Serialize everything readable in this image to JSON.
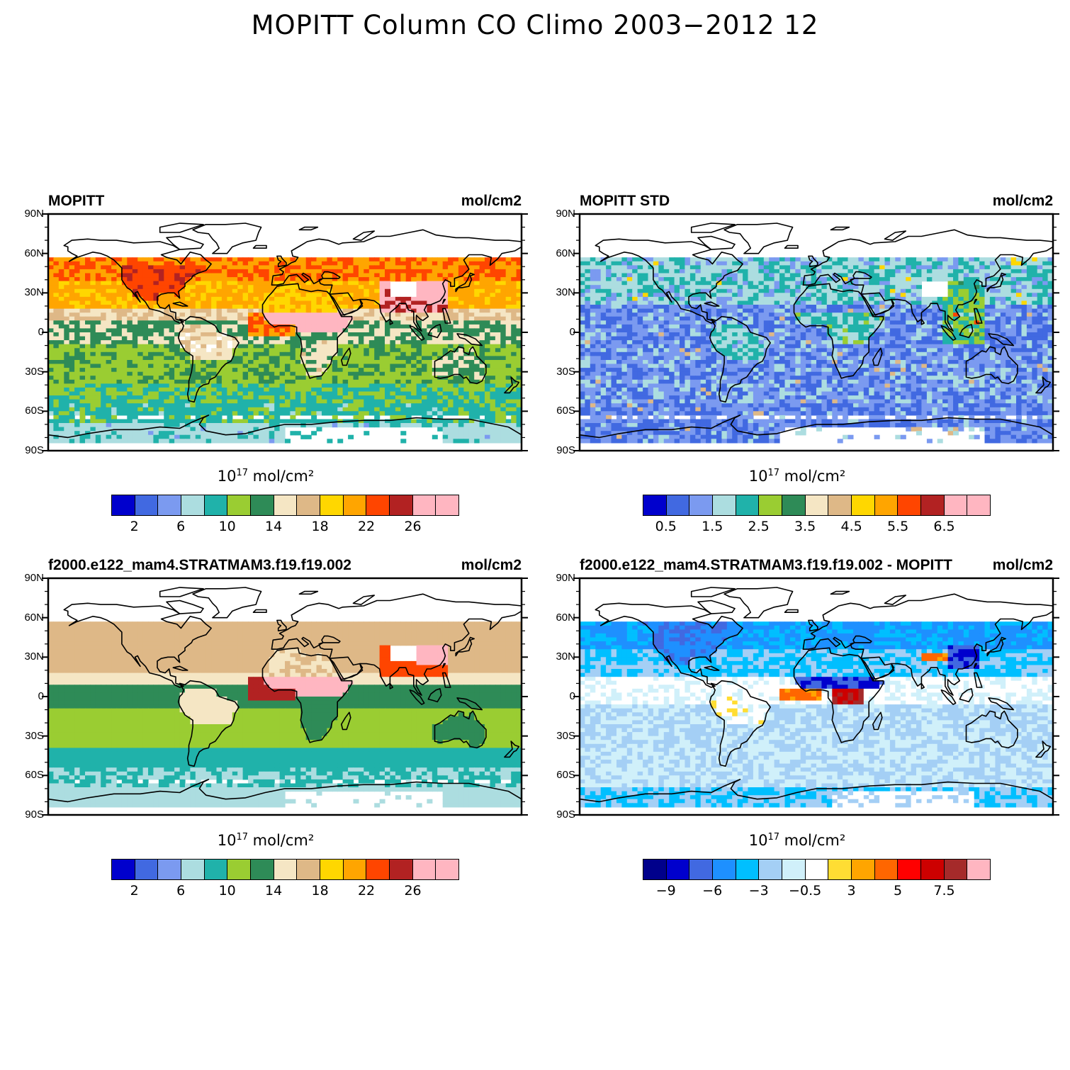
{
  "title": "MOPITT Column CO Climo 2003−2012 12",
  "lat_labels": [
    "90N",
    "60N",
    "30N",
    "0",
    "30S",
    "60S",
    "90S"
  ],
  "panels": [
    {
      "left_title": "MOPITT",
      "right_title": "mol/cm2",
      "units_base": "10",
      "units_exp": "17",
      "units_rest": " mol/cm²",
      "colors": [
        "#0000cd",
        "#4169e1",
        "#7b9af0",
        "#acdde0",
        "#20b2aa",
        "#9acd32",
        "#2e8b57",
        "#f5e6c4",
        "#deb887",
        "#ffd700",
        "#ffa500",
        "#ff4500",
        "#b22222",
        "#ffb6c1",
        "#ffb6c1"
      ],
      "tick_labels": [
        "2",
        "6",
        "10",
        "14",
        "18",
        "22",
        "26"
      ],
      "tick_positions": [
        1,
        3,
        5,
        7,
        9,
        11,
        13
      ],
      "scheme": "co"
    },
    {
      "left_title": "MOPITT STD",
      "right_title": "mol/cm2",
      "units_base": "10",
      "units_exp": "17",
      "units_rest": " mol/cm²",
      "colors": [
        "#0000cd",
        "#4169e1",
        "#7b9af0",
        "#acdde0",
        "#20b2aa",
        "#9acd32",
        "#2e8b57",
        "#f5e6c4",
        "#deb887",
        "#ffd700",
        "#ffa500",
        "#ff4500",
        "#b22222",
        "#ffb6c1",
        "#ffb6c1"
      ],
      "tick_labels": [
        "0.5",
        "1.5",
        "2.5",
        "3.5",
        "4.5",
        "5.5",
        "6.5"
      ],
      "tick_positions": [
        1,
        3,
        5,
        7,
        9,
        11,
        13
      ],
      "scheme": "std"
    },
    {
      "left_title": "f2000.e122_mam4.STRATMAM3.f19.f19.002",
      "right_title": "mol/cm2",
      "units_base": "10",
      "units_exp": "17",
      "units_rest": " mol/cm²",
      "colors": [
        "#0000cd",
        "#4169e1",
        "#7b9af0",
        "#acdde0",
        "#20b2aa",
        "#9acd32",
        "#2e8b57",
        "#f5e6c4",
        "#deb887",
        "#ffd700",
        "#ffa500",
        "#ff4500",
        "#b22222",
        "#ffb6c1",
        "#ffb6c1"
      ],
      "tick_labels": [
        "2",
        "6",
        "10",
        "14",
        "18",
        "22",
        "26"
      ],
      "tick_positions": [
        1,
        3,
        5,
        7,
        9,
        11,
        13
      ],
      "scheme": "model"
    },
    {
      "left_title": "f2000.e122_mam4.STRATMAM3.f19.f19.002 - MOPITT",
      "right_title": "mol/cm2",
      "units_base": "10",
      "units_exp": "17",
      "units_rest": " mol/cm²",
      "colors": [
        "#00008b",
        "#0000cd",
        "#4169e1",
        "#1e90ff",
        "#00bfff",
        "#a4cff5",
        "#d0f0fa",
        "#ffffff",
        "#ffdd33",
        "#ffa500",
        "#ff6600",
        "#ff0000",
        "#cd0000",
        "#a52a2a",
        "#ffb6c1"
      ],
      "tick_labels": [
        "−9",
        "−6",
        "−3",
        "−0.5",
        "3",
        "5",
        "7.5"
      ],
      "tick_positions": [
        1,
        3,
        5,
        7,
        9,
        11,
        13
      ],
      "scheme": "diff"
    }
  ]
}
